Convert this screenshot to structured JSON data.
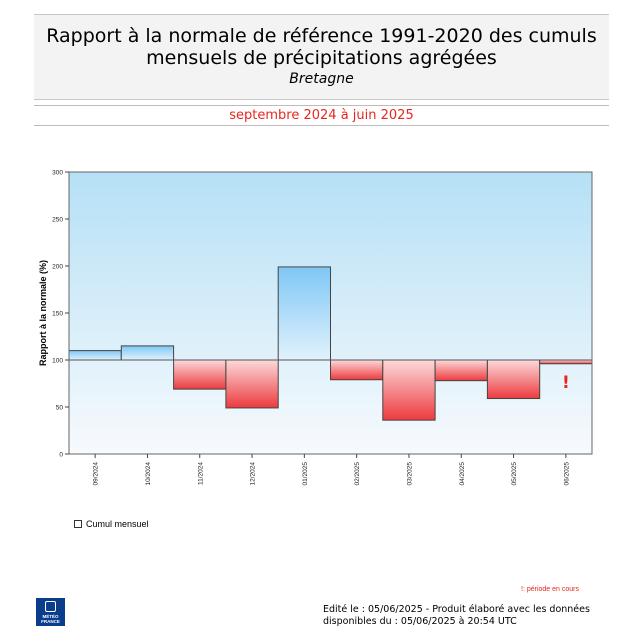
{
  "header": {
    "title_line1": "Rapport à la normale de référence 1991-2020 des cumuls",
    "title_line2": "mensuels de précipitations agrégées",
    "region": "Bretagne"
  },
  "period": "septembre 2024 à juin 2025",
  "legend": {
    "label": "Cumul mensuel"
  },
  "footnote": "!: période en cours",
  "logo": {
    "line1": "MÉTÉO",
    "line2": "FRANCE"
  },
  "footer": {
    "line1": "Edité le : 05/06/2025 - Produit élaboré avec les données",
    "line2": "disponibles du : 05/06/2025 à 20:54 UTC"
  },
  "colors": {
    "above_normal_top": "#7ec7f5",
    "above_normal_bottom": "#e2f2fd",
    "below_normal_top": "#fcd9db",
    "below_normal_bottom": "#ec3b3e",
    "background_top": "#b5e0f6",
    "background_bottom": "#f7fafd",
    "in_progress_marker": "#e8261e"
  },
  "chart_data": {
    "type": "bar",
    "baseline": 100,
    "ylabel": "Rapport à la normale (%)",
    "ylim": [
      0,
      300
    ],
    "yticks": [
      0,
      50,
      100,
      150,
      200,
      250,
      300
    ],
    "categories": [
      "09/2024",
      "10/2024",
      "11/2024",
      "12/2024",
      "01/2025",
      "02/2025",
      "03/2025",
      "04/2025",
      "05/2025",
      "06/2025"
    ],
    "values": [
      110,
      115,
      69,
      49,
      199,
      79,
      36,
      78,
      59,
      96
    ],
    "in_progress": [
      false,
      false,
      false,
      false,
      false,
      false,
      false,
      false,
      false,
      true
    ],
    "in_progress_marker": "!",
    "grid": false
  }
}
